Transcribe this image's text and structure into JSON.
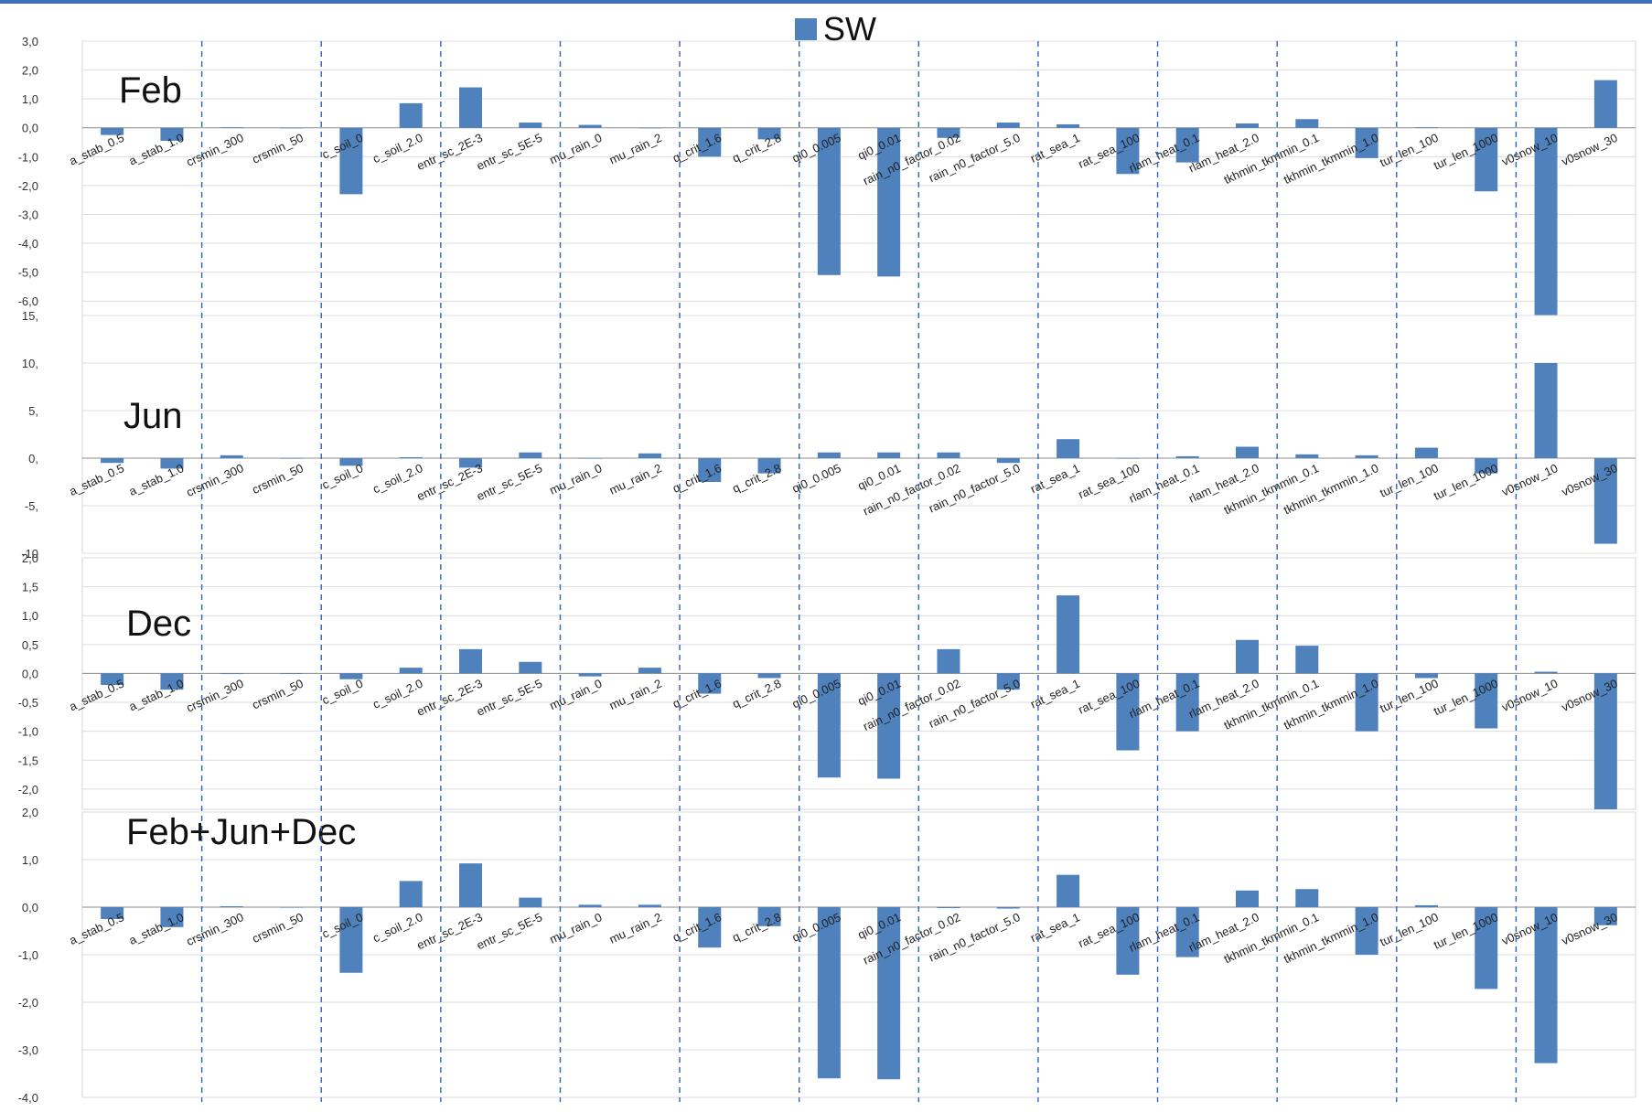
{
  "legend": {
    "label": "SW",
    "color": "#4f81bd"
  },
  "chart_data": [
    {
      "type": "bar",
      "title": "Feb",
      "ylim": [
        -6.5,
        3.0
      ],
      "ytick_labels": [
        "3,0",
        "2,0",
        "1,0",
        "0,0",
        "-1,0",
        "-2,0",
        "-3,0",
        "-4,0",
        "-5,0",
        "-6,0"
      ],
      "ytick_values": [
        3,
        2,
        1,
        0,
        -1,
        -2,
        -3,
        -4,
        -5,
        -6
      ],
      "grid": true,
      "categories": [
        "a_stab_0.5",
        "a_stab_1.0",
        "crsmin_300",
        "crsmin_50",
        "c_soil_0",
        "c_soil_2.0",
        "entr_sc_2E-3",
        "entr_sc_5E-5",
        "mu_rain_0",
        "mu_rain_2",
        "q_crit_1.6",
        "q_crit_2.8",
        "qi0_0.005",
        "qi0_0.01",
        "rain_n0_factor_0.02",
        "rain_n0_factor_5.0",
        "rat_sea_1",
        "rat_sea_100",
        "rlam_heat_0.1",
        "rlam_heat_2.0",
        "tkhmin_tkmmin_0.1",
        "tkhmin_tkmmin_1.0",
        "tur_len_100",
        "tur_len_1000",
        "v0snow_10",
        "v0snow_30"
      ],
      "values": [
        -0.25,
        -0.45,
        0.02,
        0.0,
        -2.3,
        0.85,
        1.4,
        0.18,
        0.1,
        0.0,
        -1.0,
        -0.4,
        -5.1,
        -5.15,
        -0.35,
        0.18,
        0.12,
        -1.6,
        -1.2,
        0.15,
        0.3,
        -1.05,
        0.02,
        -2.2,
        -6.5,
        1.65
      ]
    },
    {
      "type": "bar",
      "title": "Jun",
      "ylim": [
        -10,
        15
      ],
      "ytick_labels": [
        "15,",
        "10,",
        "5,",
        "0,",
        "-5,",
        "-10"
      ],
      "ytick_values": [
        15,
        10,
        5,
        0,
        -5,
        -10
      ],
      "grid": true,
      "categories": [
        "a_stab_0.5",
        "a_stab_1.0",
        "crsmin_300",
        "crsmin_50",
        "c_soil_0",
        "c_soil_2.0",
        "entr_sc_2E-3",
        "entr_sc_5E-5",
        "mu_rain_0",
        "mu_rain_2",
        "q_crit_1.6",
        "q_crit_2.8",
        "qi0_0.005",
        "qi0_0.01",
        "rain_n0_factor_0.02",
        "rain_n0_factor_5.0",
        "rat_sea_1",
        "rat_sea_100",
        "rlam_heat_0.1",
        "rlam_heat_2.0",
        "tkhmin_tkmmin_0.1",
        "tkhmin_tkmmin_1.0",
        "tur_len_100",
        "tur_len_1000",
        "v0snow_10",
        "v0snow_30"
      ],
      "values": [
        -0.5,
        -1.1,
        0.3,
        0.0,
        -0.8,
        0.1,
        -1.0,
        0.6,
        0.0,
        0.5,
        -2.5,
        -1.6,
        0.6,
        0.6,
        0.6,
        -0.5,
        2.0,
        0.0,
        0.2,
        1.2,
        0.4,
        0.3,
        1.1,
        -1.6,
        10.0,
        -9.0
      ]
    },
    {
      "type": "bar",
      "title": "Dec",
      "ylim": [
        -2.35,
        2.0
      ],
      "ytick_labels": [
        "2,0",
        "1,5",
        "1,0",
        "0,5",
        "0,0",
        "-0,5",
        "-1,0",
        "-1,5",
        "-2,0"
      ],
      "ytick_values": [
        2,
        1.5,
        1,
        0.5,
        0,
        -0.5,
        -1,
        -1.5,
        -2
      ],
      "grid": true,
      "categories": [
        "a_stab_0.5",
        "a_stab_1.0",
        "crsmin_300",
        "crsmin_50",
        "c_soil_0",
        "c_soil_2.0",
        "entr_sc_2E-3",
        "entr_sc_5E-5",
        "mu_rain_0",
        "mu_rain_2",
        "q_crit_1.6",
        "q_crit_2.8",
        "qi0_0.005",
        "qi0_0.01",
        "rain_n0_factor_0.02",
        "rain_n0_factor_5.0",
        "rat_sea_1",
        "rat_sea_100",
        "rlam_heat_0.1",
        "rlam_heat_2.0",
        "tkhmin_tkmmin_0.1",
        "tkhmin_tkmmin_1.0",
        "tur_len_100",
        "tur_len_1000",
        "v0snow_10",
        "v0snow_30"
      ],
      "values": [
        -0.2,
        -0.28,
        -0.01,
        0.0,
        -0.1,
        0.1,
        0.42,
        0.2,
        -0.05,
        0.1,
        -0.35,
        -0.08,
        -1.8,
        -1.82,
        0.42,
        -0.28,
        1.35,
        -1.33,
        -1.0,
        0.58,
        0.48,
        -1.0,
        -0.08,
        -0.95,
        0.03,
        -2.35
      ]
    },
    {
      "type": "bar",
      "title": "Feb+Jun+Dec",
      "ylim": [
        -4.0,
        2.0
      ],
      "ytick_labels": [
        "2,0",
        "1,0",
        "0,0",
        "-1,0",
        "-2,0",
        "-3,0",
        "-4,0"
      ],
      "ytick_values": [
        2,
        1,
        0,
        -1,
        -2,
        -3,
        -4
      ],
      "grid": true,
      "categories": [
        "a_stab_0.5",
        "a_stab_1.0",
        "crsmin_300",
        "crsmin_50",
        "c_soil_0",
        "c_soil_2.0",
        "entr_sc_2E-3",
        "entr_sc_5E-5",
        "mu_rain_0",
        "mu_rain_2",
        "q_crit_1.6",
        "q_crit_2.8",
        "qi0_0.005",
        "qi0_0.01",
        "rain_n0_factor_0.02",
        "rain_n0_factor_5.0",
        "rat_sea_1",
        "rat_sea_100",
        "rlam_heat_0.1",
        "rlam_heat_2.0",
        "tkhmin_tkmmin_0.1",
        "tkhmin_tkmmin_1.0",
        "tur_len_100",
        "tur_len_1000",
        "v0snow_10",
        "v0snow_30"
      ],
      "values": [
        -0.25,
        -0.42,
        0.02,
        0.0,
        -1.38,
        0.55,
        0.92,
        0.2,
        0.05,
        0.05,
        -0.85,
        -0.4,
        -3.6,
        -3.62,
        -0.02,
        -0.03,
        0.68,
        -1.42,
        -1.05,
        0.35,
        0.38,
        -1.0,
        0.04,
        -1.72,
        -3.28,
        -0.38
      ]
    }
  ]
}
